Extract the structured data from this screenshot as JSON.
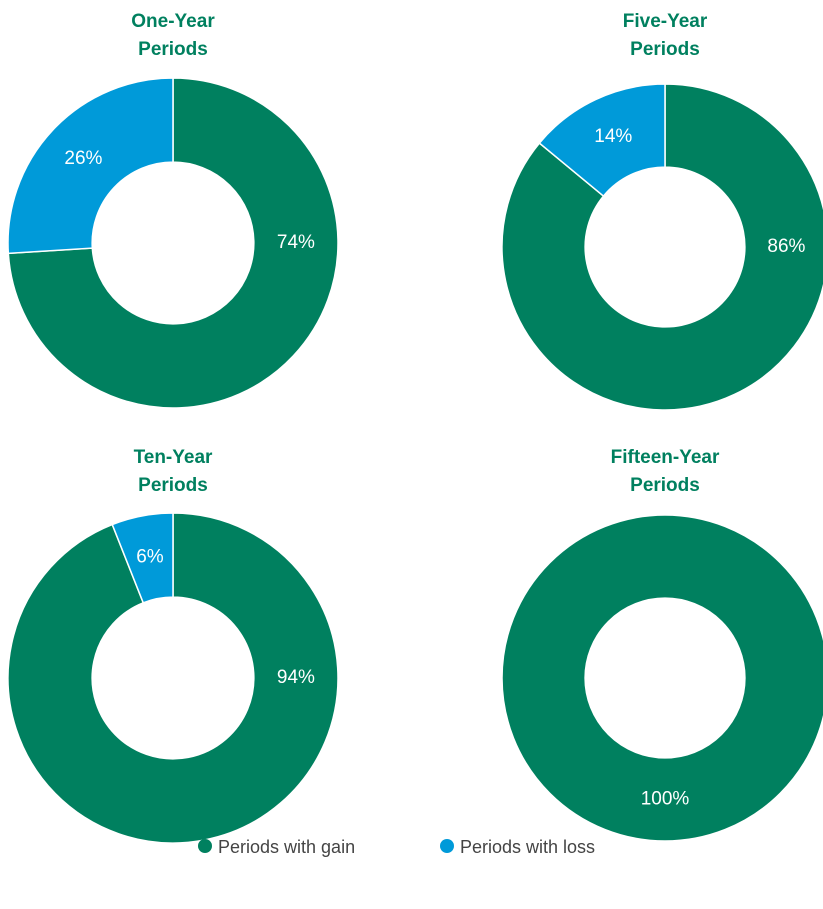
{
  "chart_data": [
    {
      "type": "pie",
      "title": "One-Year Periods",
      "categories": [
        "Periods with gain",
        "Periods with loss"
      ],
      "values": [
        74,
        26
      ],
      "value_labels": [
        "74%",
        "26%"
      ],
      "colors": [
        "#00805f",
        "#009ad9"
      ]
    },
    {
      "type": "pie",
      "title": "Five-Year Periods",
      "categories": [
        "Periods with gain",
        "Periods with loss"
      ],
      "values": [
        86,
        14
      ],
      "value_labels": [
        "86%",
        "14%"
      ],
      "colors": [
        "#00805f",
        "#009ad9"
      ]
    },
    {
      "type": "pie",
      "title": "Ten-Year Periods",
      "categories": [
        "Periods with gain",
        "Periods with loss"
      ],
      "values": [
        94,
        6
      ],
      "value_labels": [
        "94%",
        "6%"
      ],
      "colors": [
        "#00805f",
        "#009ad9"
      ]
    },
    {
      "type": "pie",
      "title": "Fifteen-Year Periods",
      "categories": [
        "Periods with gain",
        "Periods with loss"
      ],
      "values": [
        100,
        0
      ],
      "value_labels": [
        "100%",
        null
      ],
      "colors": [
        "#00805f",
        "#009ad9"
      ]
    }
  ]
}
